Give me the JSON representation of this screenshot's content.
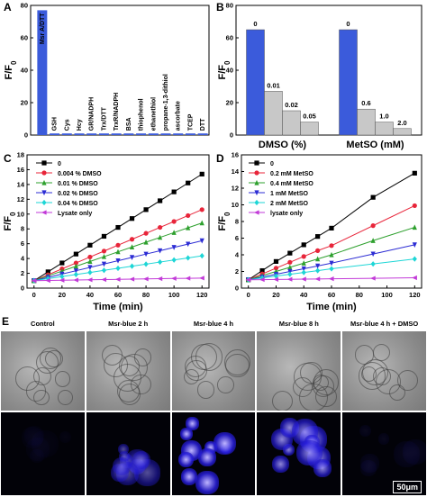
{
  "panels": {
    "A": "A",
    "B": "B",
    "C": "C",
    "D": "D",
    "E": "E"
  },
  "chart_data": [
    {
      "id": "A",
      "type": "bar",
      "ylabel": "F/F0",
      "ylim": [
        0,
        80
      ],
      "yticks": [
        0,
        20,
        40,
        60,
        80
      ],
      "categories": [
        "Msr A/DTT",
        "GSH",
        "Cys",
        "Hcy",
        "GR/NADPH",
        "Trx/DTT",
        "TrxR/NADPH",
        "BSA",
        "thiophenol",
        "ethanethiol",
        "propane-1,3-dithiol",
        "ascorbate",
        "TCEP",
        "DTT"
      ],
      "values": [
        77,
        1,
        1,
        1,
        1,
        1,
        1,
        1,
        1,
        1,
        1,
        1,
        1,
        1
      ],
      "color": "#3b5bdb"
    },
    {
      "id": "B",
      "type": "bar",
      "ylabel": "F/F0",
      "ylim": [
        0,
        80
      ],
      "yticks": [
        0,
        20,
        40,
        60,
        80
      ],
      "groups": [
        {
          "xlabel": "DMSO (%)",
          "labels": [
            "0",
            "0.01",
            "0.02",
            "0.05"
          ],
          "values": [
            65,
            27,
            15,
            8
          ]
        },
        {
          "xlabel": "MetSO (mM)",
          "labels": [
            "0",
            "0.6",
            "1.0",
            "2.0"
          ],
          "values": [
            65,
            16,
            8,
            4
          ]
        }
      ],
      "colors": [
        "#3b5bdb",
        "#c8c8c8",
        "#c8c8c8",
        "#c8c8c8"
      ]
    },
    {
      "id": "C",
      "type": "line",
      "xlabel": "Time (min)",
      "ylabel": "F/F0",
      "xlim": [
        -5,
        125
      ],
      "ylim": [
        0,
        18
      ],
      "xticks": [
        0,
        20,
        40,
        60,
        80,
        100,
        120
      ],
      "yticks": [
        0,
        2,
        4,
        6,
        8,
        10,
        12,
        14,
        16,
        18
      ],
      "x": [
        0,
        10,
        20,
        30,
        40,
        50,
        60,
        70,
        80,
        90,
        100,
        110,
        120
      ],
      "series": [
        {
          "name": "0",
          "color": "#000000",
          "marker": "square",
          "values": [
            1,
            2.2,
            3.4,
            4.6,
            5.8,
            7.0,
            8.2,
            9.4,
            10.6,
            11.8,
            13.0,
            14.2,
            15.4
          ]
        },
        {
          "name": "0.004 % DMSO",
          "color": "#e8253a",
          "marker": "circle",
          "values": [
            1,
            1.8,
            2.6,
            3.4,
            4.2,
            5.0,
            5.8,
            6.6,
            7.4,
            8.2,
            9.0,
            9.8,
            10.6
          ]
        },
        {
          "name": "0.01 % DMSO",
          "color": "#2ea02e",
          "marker": "triangle-up",
          "values": [
            1,
            1.65,
            2.3,
            2.95,
            3.6,
            4.25,
            4.9,
            5.55,
            6.2,
            6.85,
            7.5,
            8.15,
            8.8
          ]
        },
        {
          "name": "0.02 % DMSO",
          "color": "#2c2cd4",
          "marker": "triangle-down",
          "values": [
            1,
            1.45,
            1.9,
            2.35,
            2.8,
            3.25,
            3.7,
            4.15,
            4.6,
            5.05,
            5.5,
            5.95,
            6.4
          ]
        },
        {
          "name": "0.04 % DMSO",
          "color": "#1ed6d6",
          "marker": "diamond",
          "values": [
            1,
            1.28,
            1.56,
            1.84,
            2.12,
            2.4,
            2.68,
            2.96,
            3.24,
            3.52,
            3.8,
            4.08,
            4.36
          ]
        },
        {
          "name": "Lysate only",
          "color": "#c23ad8",
          "marker": "triangle-left",
          "values": [
            1,
            1.03,
            1.06,
            1.09,
            1.12,
            1.15,
            1.18,
            1.21,
            1.24,
            1.27,
            1.3,
            1.33,
            1.36
          ]
        }
      ]
    },
    {
      "id": "D",
      "type": "line",
      "xlabel": "Time (min)",
      "ylabel": "F/F0",
      "xlim": [
        -5,
        125
      ],
      "ylim": [
        0,
        16
      ],
      "xticks": [
        0,
        20,
        40,
        60,
        80,
        100,
        120
      ],
      "yticks": [
        0,
        2,
        4,
        6,
        8,
        10,
        12,
        14,
        16
      ],
      "x": [
        0,
        10,
        20,
        30,
        40,
        50,
        60,
        90,
        120
      ],
      "series": [
        {
          "name": "0",
          "color": "#000000",
          "marker": "square",
          "values": [
            1,
            2.1,
            3.2,
            4.2,
            5.2,
            6.2,
            7.2,
            10.9,
            13.8
          ]
        },
        {
          "name": "0.2 mM MetSO",
          "color": "#e8253a",
          "marker": "circle",
          "values": [
            1,
            1.7,
            2.4,
            3.1,
            3.8,
            4.5,
            5.1,
            7.5,
            9.9
          ]
        },
        {
          "name": "0.4 mM MetSO",
          "color": "#2ea02e",
          "marker": "triangle-up",
          "values": [
            1,
            1.5,
            2.0,
            2.5,
            3.0,
            3.5,
            4.0,
            5.7,
            7.3
          ]
        },
        {
          "name": "1 mM MetSO",
          "color": "#2c2cd4",
          "marker": "triangle-down",
          "values": [
            1,
            1.33,
            1.66,
            2.0,
            2.33,
            2.66,
            3.0,
            4.1,
            5.2
          ]
        },
        {
          "name": "2 mM MetSO",
          "color": "#1ed6d6",
          "marker": "diamond",
          "values": [
            1,
            1.22,
            1.44,
            1.66,
            1.88,
            2.1,
            2.32,
            2.9,
            3.5
          ]
        },
        {
          "name": "lysate only",
          "color": "#c23ad8",
          "marker": "triangle-left",
          "values": [
            1,
            1.02,
            1.04,
            1.06,
            1.08,
            1.1,
            1.12,
            1.18,
            1.24
          ]
        }
      ]
    }
  ],
  "microscopy": {
    "labels": [
      "Control",
      "Msr-blue  2 h",
      "Msr-blue  4 h",
      "Msr-blue  8 h",
      "Msr-blue 4 h + DMSO"
    ],
    "brightness": [
      0.04,
      0.55,
      1.0,
      0.8,
      0.08
    ],
    "scale_bar": "50μm"
  }
}
